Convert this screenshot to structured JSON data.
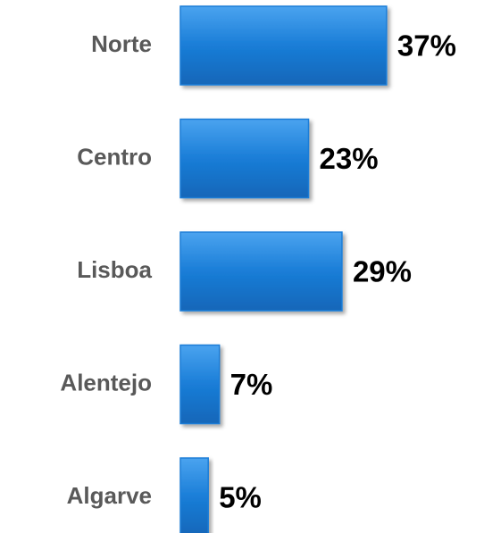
{
  "chart_data": {
    "type": "bar",
    "orientation": "horizontal",
    "categories": [
      "Norte",
      "Centro",
      "Lisboa",
      "Alentejo",
      "Algarve"
    ],
    "values": [
      37,
      23,
      29,
      7,
      5
    ],
    "value_labels": [
      "37%",
      "23%",
      "29%",
      "7%",
      "5%"
    ],
    "color": "#1a7dd7"
  }
}
